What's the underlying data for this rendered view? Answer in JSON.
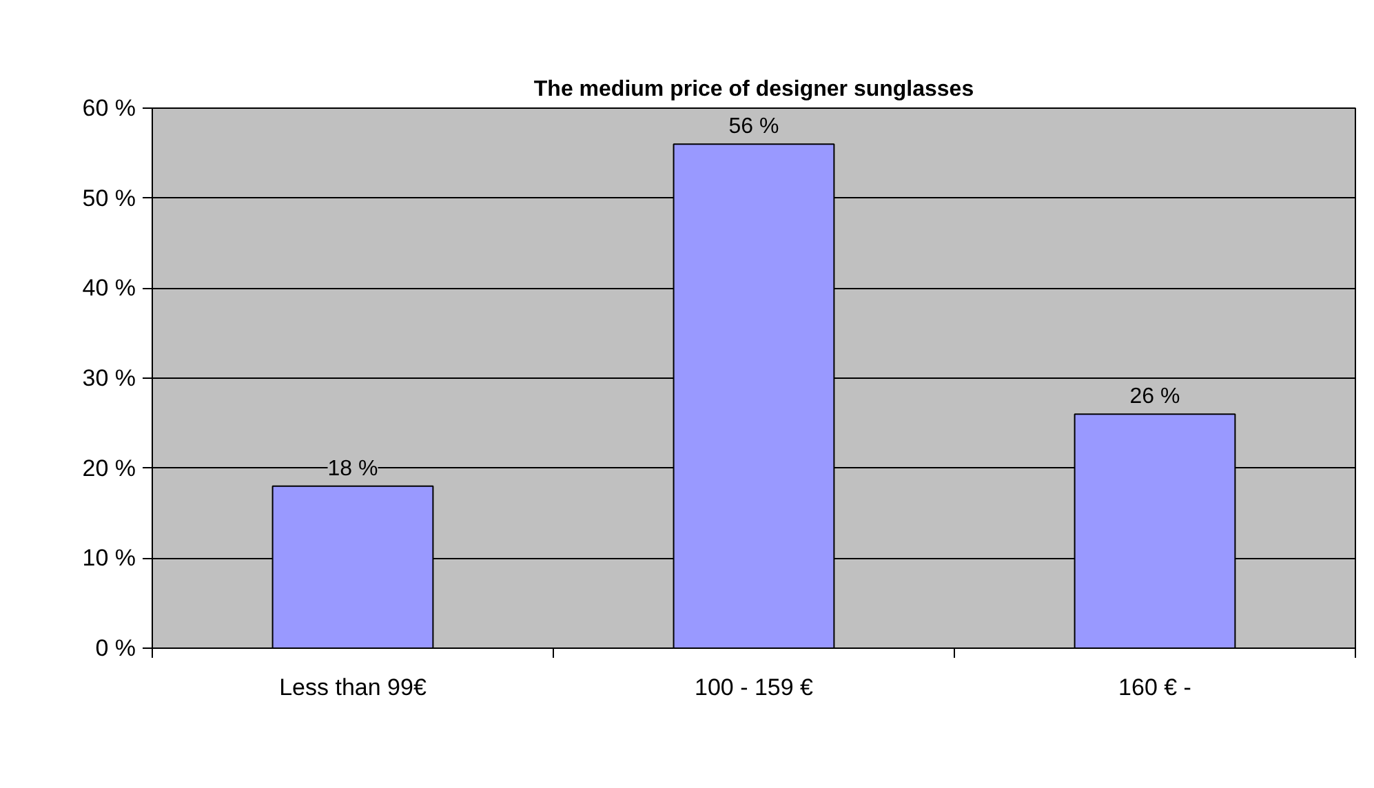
{
  "chart_data": {
    "type": "bar",
    "title": "The medium price of designer sunglasses",
    "categories": [
      "Less than 99€",
      "100 - 159 €",
      "160 € -"
    ],
    "values": [
      18,
      56,
      26
    ],
    "color": "#9999ff",
    "value_labels": [
      "18 %",
      "56 %",
      "26 %"
    ],
    "ylim": [
      0,
      60
    ],
    "yticks": [
      {
        "value": 0,
        "label": "0 %"
      },
      {
        "value": 10,
        "label": "10 %"
      },
      {
        "value": 20,
        "label": "20 %"
      },
      {
        "value": 30,
        "label": "30 %"
      },
      {
        "value": 40,
        "label": "40 %"
      },
      {
        "value": 50,
        "label": "50 %"
      },
      {
        "value": 60,
        "label": "60 %"
      }
    ],
    "grid": "y"
  }
}
